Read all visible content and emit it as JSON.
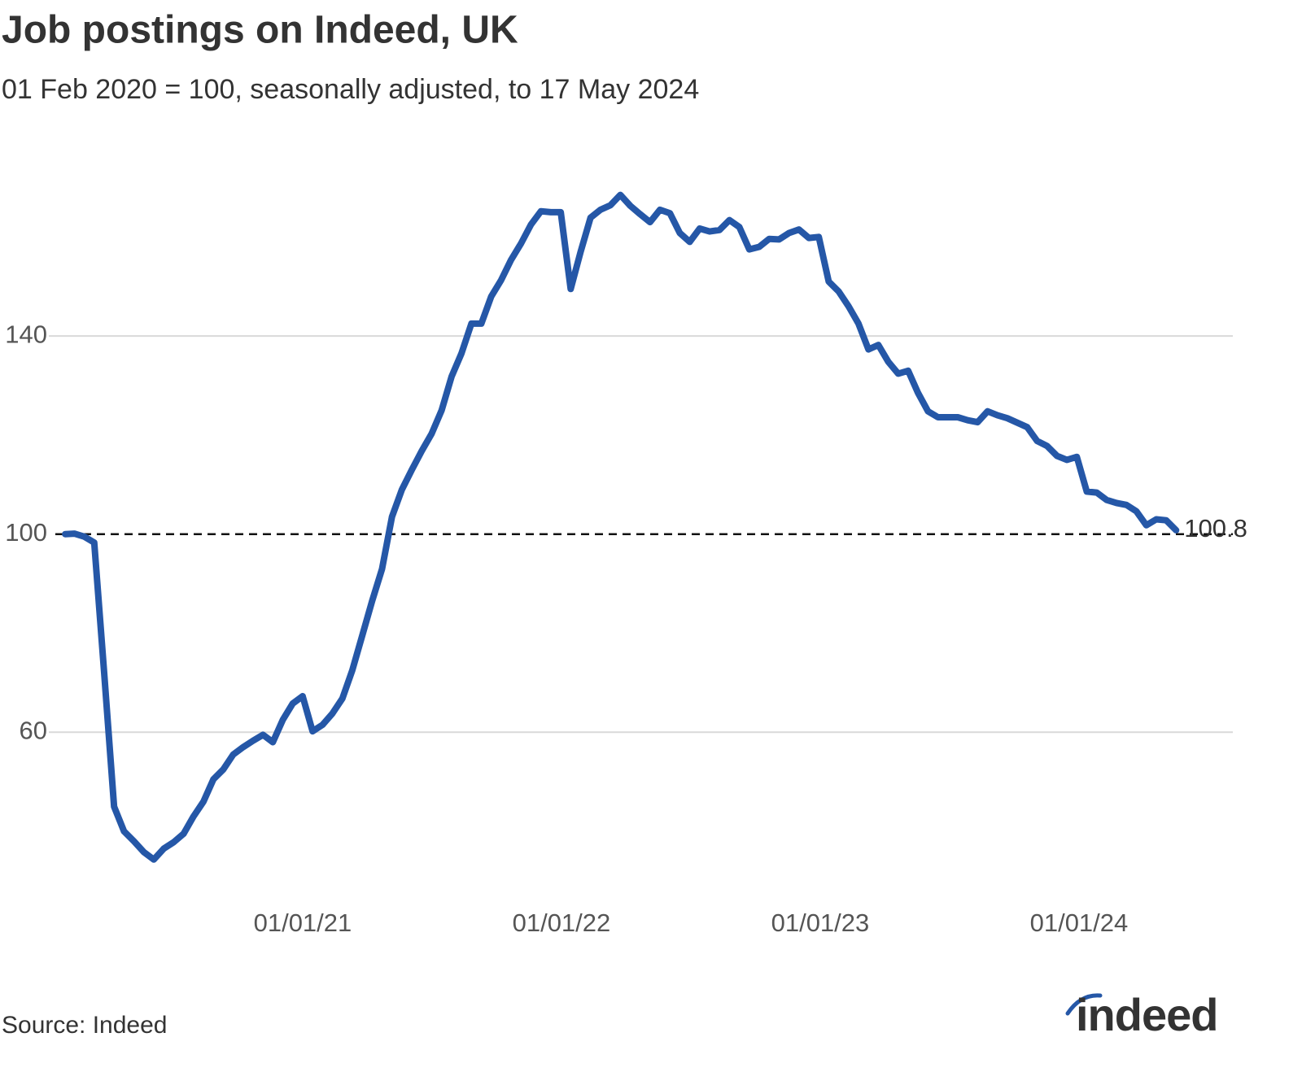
{
  "chart_data": {
    "type": "line",
    "title": "Job postings on Indeed, UK",
    "subtitle": "01 Feb 2020 = 100, seasonally adjusted, to 17 May 2024",
    "source": "Source: Indeed",
    "logo": "indeed",
    "x": [
      "2020-02-01",
      "2020-02-14",
      "2020-02-28",
      "2020-03-13",
      "2020-03-27",
      "2020-04-10",
      "2020-04-24",
      "2020-05-08",
      "2020-05-22",
      "2020-06-05",
      "2020-06-19",
      "2020-07-03",
      "2020-07-17",
      "2020-07-31",
      "2020-08-14",
      "2020-08-28",
      "2020-09-11",
      "2020-09-25",
      "2020-10-09",
      "2020-10-23",
      "2020-11-06",
      "2020-11-20",
      "2020-12-04",
      "2020-12-18",
      "2021-01-01",
      "2021-01-15",
      "2021-01-29",
      "2021-02-12",
      "2021-02-26",
      "2021-03-12",
      "2021-03-26",
      "2021-04-09",
      "2021-04-23",
      "2021-05-07",
      "2021-05-21",
      "2021-06-04",
      "2021-06-18",
      "2021-07-02",
      "2021-07-16",
      "2021-07-30",
      "2021-08-13",
      "2021-08-27",
      "2021-09-10",
      "2021-09-24",
      "2021-10-08",
      "2021-10-22",
      "2021-11-05",
      "2021-11-19",
      "2021-12-03",
      "2021-12-17",
      "2021-12-31",
      "2022-01-14",
      "2022-01-28",
      "2022-02-11",
      "2022-02-25",
      "2022-03-11",
      "2022-03-25",
      "2022-04-08",
      "2022-04-22",
      "2022-05-06",
      "2022-05-20",
      "2022-06-03",
      "2022-06-17",
      "2022-07-01",
      "2022-07-15",
      "2022-07-29",
      "2022-08-12",
      "2022-08-26",
      "2022-09-09",
      "2022-09-23",
      "2022-10-07",
      "2022-10-21",
      "2022-11-04",
      "2022-11-18",
      "2022-12-02",
      "2022-12-16",
      "2022-12-30",
      "2023-01-13",
      "2023-01-27",
      "2023-02-10",
      "2023-02-24",
      "2023-03-10",
      "2023-03-24",
      "2023-04-07",
      "2023-04-21",
      "2023-05-05",
      "2023-05-19",
      "2023-06-02",
      "2023-06-16",
      "2023-06-30",
      "2023-07-14",
      "2023-07-28",
      "2023-08-11",
      "2023-08-25",
      "2023-09-08",
      "2023-09-22",
      "2023-10-06",
      "2023-10-20",
      "2023-11-03",
      "2023-11-17",
      "2023-12-01",
      "2023-12-15",
      "2023-12-29",
      "2024-01-12",
      "2024-01-26",
      "2024-02-09",
      "2024-02-23",
      "2024-03-08",
      "2024-03-22",
      "2024-04-05",
      "2024-04-19",
      "2024-05-03",
      "2024-05-17"
    ],
    "series": [
      {
        "name": "Job postings",
        "color": "#2557a7",
        "values": [
          100,
          100.1,
          99.5,
          98.3,
          72,
          45,
          40,
          38,
          35.8,
          34.3,
          36.5,
          37.8,
          39.5,
          43,
          46,
          50.5,
          52.5,
          55.5,
          57,
          58.3,
          59.5,
          58,
          62.5,
          65.8,
          67.3,
          60.2,
          61.5,
          63.8,
          66.8,
          72.5,
          79.5,
          86.5,
          93,
          103.5,
          109,
          113,
          116.8,
          120.3,
          125,
          131.8,
          136.5,
          142.5,
          142.5,
          148,
          151.3,
          155.4,
          158.7,
          162.5,
          165.2,
          165,
          165,
          149.5,
          157,
          163.9,
          165.5,
          166.4,
          168.5,
          166.3,
          164.6,
          163,
          165.5,
          164.8,
          160.8,
          159,
          161.7,
          161.1,
          161.4,
          163.4,
          162,
          157.5,
          158,
          159.6,
          159.5,
          160.8,
          161.5,
          159.8,
          160,
          151,
          149,
          146,
          142.5,
          137.3,
          138.2,
          134.8,
          132.4,
          133,
          128.5,
          124.8,
          123.6,
          123.6,
          123.6,
          123,
          122.6,
          124.8,
          124,
          123.4,
          122.5,
          121.6,
          118.8,
          117.8,
          115.8,
          115,
          115.6,
          108.6,
          108.4,
          106.9,
          106.3,
          105.9,
          104.6,
          101.8,
          103,
          102.8,
          100.8
        ]
      }
    ],
    "reference_line": 100,
    "xlim": [
      "2019-12-17",
      "2024-08-05"
    ],
    "xticks": [
      {
        "value": "2021-01-01",
        "label": "01/01/21"
      },
      {
        "value": "2022-01-01",
        "label": "01/01/22"
      },
      {
        "value": "2023-01-01",
        "label": "01/01/23"
      },
      {
        "value": "2024-01-01",
        "label": "01/01/24"
      }
    ],
    "ylim": [
      30,
      175
    ],
    "yticks": [
      60,
      100,
      140
    ],
    "grid": true
  }
}
